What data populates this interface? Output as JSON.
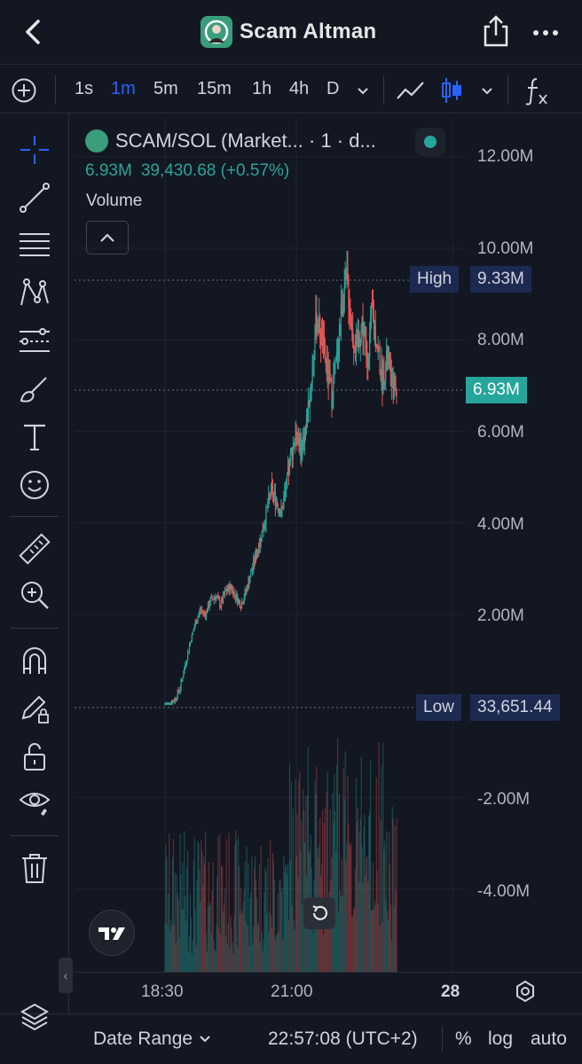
{
  "header": {
    "title": "Scam Altman",
    "back_icon": "back-chevron-icon",
    "share_icon": "share-icon",
    "more_icon": "more-dots-icon"
  },
  "toolbar": {
    "timeframes": [
      "1s",
      "1m",
      "5m",
      "15m",
      "1h",
      "4h",
      "D"
    ],
    "active_timeframe": "1m"
  },
  "legend": {
    "symbol": "SCAM/SOL (Market... · 1 · d...",
    "last": "6.93M",
    "change": "39,430.68 (+0.57%)",
    "volume_label": "Volume"
  },
  "price_axis": {
    "labels": [
      "12.00M",
      "10.00M",
      "8.00M",
      "6.00M",
      "4.00M",
      "2.00M",
      "-2.00M",
      "-4.00M"
    ],
    "high_label": "High",
    "high_value": "9.33M",
    "last_value": "6.93M",
    "low_label": "Low",
    "low_value": "33,651.44"
  },
  "time_axis": {
    "labels": [
      "18:30",
      "21:00",
      "28"
    ]
  },
  "bottom": {
    "date_range": "Date Range",
    "clock": "22:57:08 (UTC+2)",
    "percent": "%",
    "log": "log",
    "auto": "auto"
  },
  "colors": {
    "background": "#131722",
    "up": "#26a69a",
    "down": "#ef5350",
    "accent": "#2962ff"
  },
  "chart_data": {
    "type": "line",
    "series": [
      {
        "values": [
          0.03,
          0.05,
          0.15,
          0.4,
          0.9,
          1.4,
          1.8,
          2.1,
          2.0,
          2.3,
          2.4,
          2.2,
          2.5,
          2.6,
          2.4,
          2.2,
          2.5,
          2.9,
          3.3,
          3.7,
          4.2,
          4.7,
          4.5,
          4.2,
          4.8,
          5.5,
          6.0,
          5.6,
          6.2,
          7.2,
          8.5,
          8.0,
          7.4,
          6.8,
          7.6,
          8.8,
          9.33,
          8.2,
          7.8,
          8.4,
          7.5,
          8.6,
          7.9,
          7.1,
          7.6,
          7.0,
          6.93
        ],
        "unit": "M"
      }
    ],
    "ylim": [
      -4.5,
      12.5
    ],
    "high": 9.33,
    "low": 0.033651
  }
}
